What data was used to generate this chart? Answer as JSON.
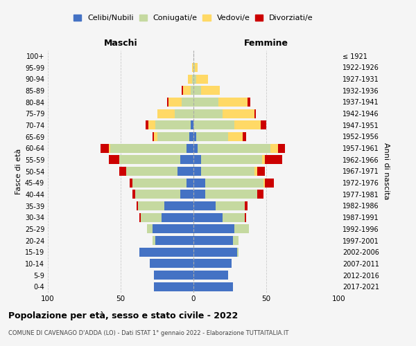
{
  "age_groups": [
    "0-4",
    "5-9",
    "10-14",
    "15-19",
    "20-24",
    "25-29",
    "30-34",
    "35-39",
    "40-44",
    "45-49",
    "50-54",
    "55-59",
    "60-64",
    "65-69",
    "70-74",
    "75-79",
    "80-84",
    "85-89",
    "90-94",
    "95-99",
    "100+"
  ],
  "birth_years": [
    "2017-2021",
    "2012-2016",
    "2007-2011",
    "2002-2006",
    "1997-2001",
    "1992-1996",
    "1987-1991",
    "1982-1986",
    "1977-1981",
    "1972-1976",
    "1967-1971",
    "1962-1966",
    "1957-1961",
    "1952-1956",
    "1947-1951",
    "1942-1946",
    "1937-1941",
    "1932-1936",
    "1927-1931",
    "1922-1926",
    "≤ 1921"
  ],
  "male": {
    "celibi": [
      27,
      27,
      30,
      37,
      26,
      28,
      22,
      20,
      9,
      5,
      11,
      9,
      5,
      3,
      2,
      0,
      0,
      0,
      0,
      0,
      0
    ],
    "coniugati": [
      0,
      0,
      0,
      0,
      2,
      4,
      14,
      18,
      31,
      37,
      35,
      42,
      52,
      22,
      24,
      13,
      8,
      2,
      1,
      0,
      0
    ],
    "vedovi": [
      0,
      0,
      0,
      0,
      0,
      0,
      0,
      0,
      0,
      0,
      0,
      0,
      1,
      2,
      5,
      12,
      9,
      5,
      3,
      1,
      0
    ],
    "divorziati": [
      0,
      0,
      0,
      0,
      0,
      0,
      1,
      1,
      2,
      2,
      5,
      7,
      6,
      1,
      2,
      0,
      1,
      1,
      0,
      0,
      0
    ]
  },
  "female": {
    "nubili": [
      27,
      24,
      26,
      30,
      27,
      28,
      20,
      15,
      8,
      8,
      5,
      5,
      3,
      2,
      0,
      0,
      0,
      0,
      0,
      0,
      0
    ],
    "coniugate": [
      0,
      0,
      0,
      1,
      4,
      10,
      15,
      20,
      36,
      40,
      37,
      42,
      50,
      22,
      28,
      20,
      17,
      5,
      2,
      1,
      0
    ],
    "vedove": [
      0,
      0,
      0,
      0,
      0,
      0,
      0,
      0,
      0,
      1,
      2,
      2,
      5,
      10,
      18,
      22,
      20,
      13,
      8,
      2,
      0
    ],
    "divorziate": [
      0,
      0,
      0,
      0,
      0,
      0,
      1,
      2,
      4,
      6,
      5,
      12,
      5,
      2,
      4,
      1,
      2,
      0,
      0,
      0,
      0
    ]
  },
  "colors": {
    "celibi": "#4472C4",
    "coniugati": "#c5d9a0",
    "vedovi": "#ffd966",
    "divorziati": "#cc0000"
  },
  "title": "Popolazione per età, sesso e stato civile - 2022",
  "subtitle": "COMUNE DI CAVENAGO D'ADDA (LO) - Dati ISTAT 1° gennaio 2022 - Elaborazione TUTTAITALIA.IT",
  "xlim": 100,
  "background_color": "#f5f5f5",
  "legend_labels": [
    "Celibi/Nubili",
    "Coniugati/e",
    "Vedovi/e",
    "Divorziati/e"
  ]
}
